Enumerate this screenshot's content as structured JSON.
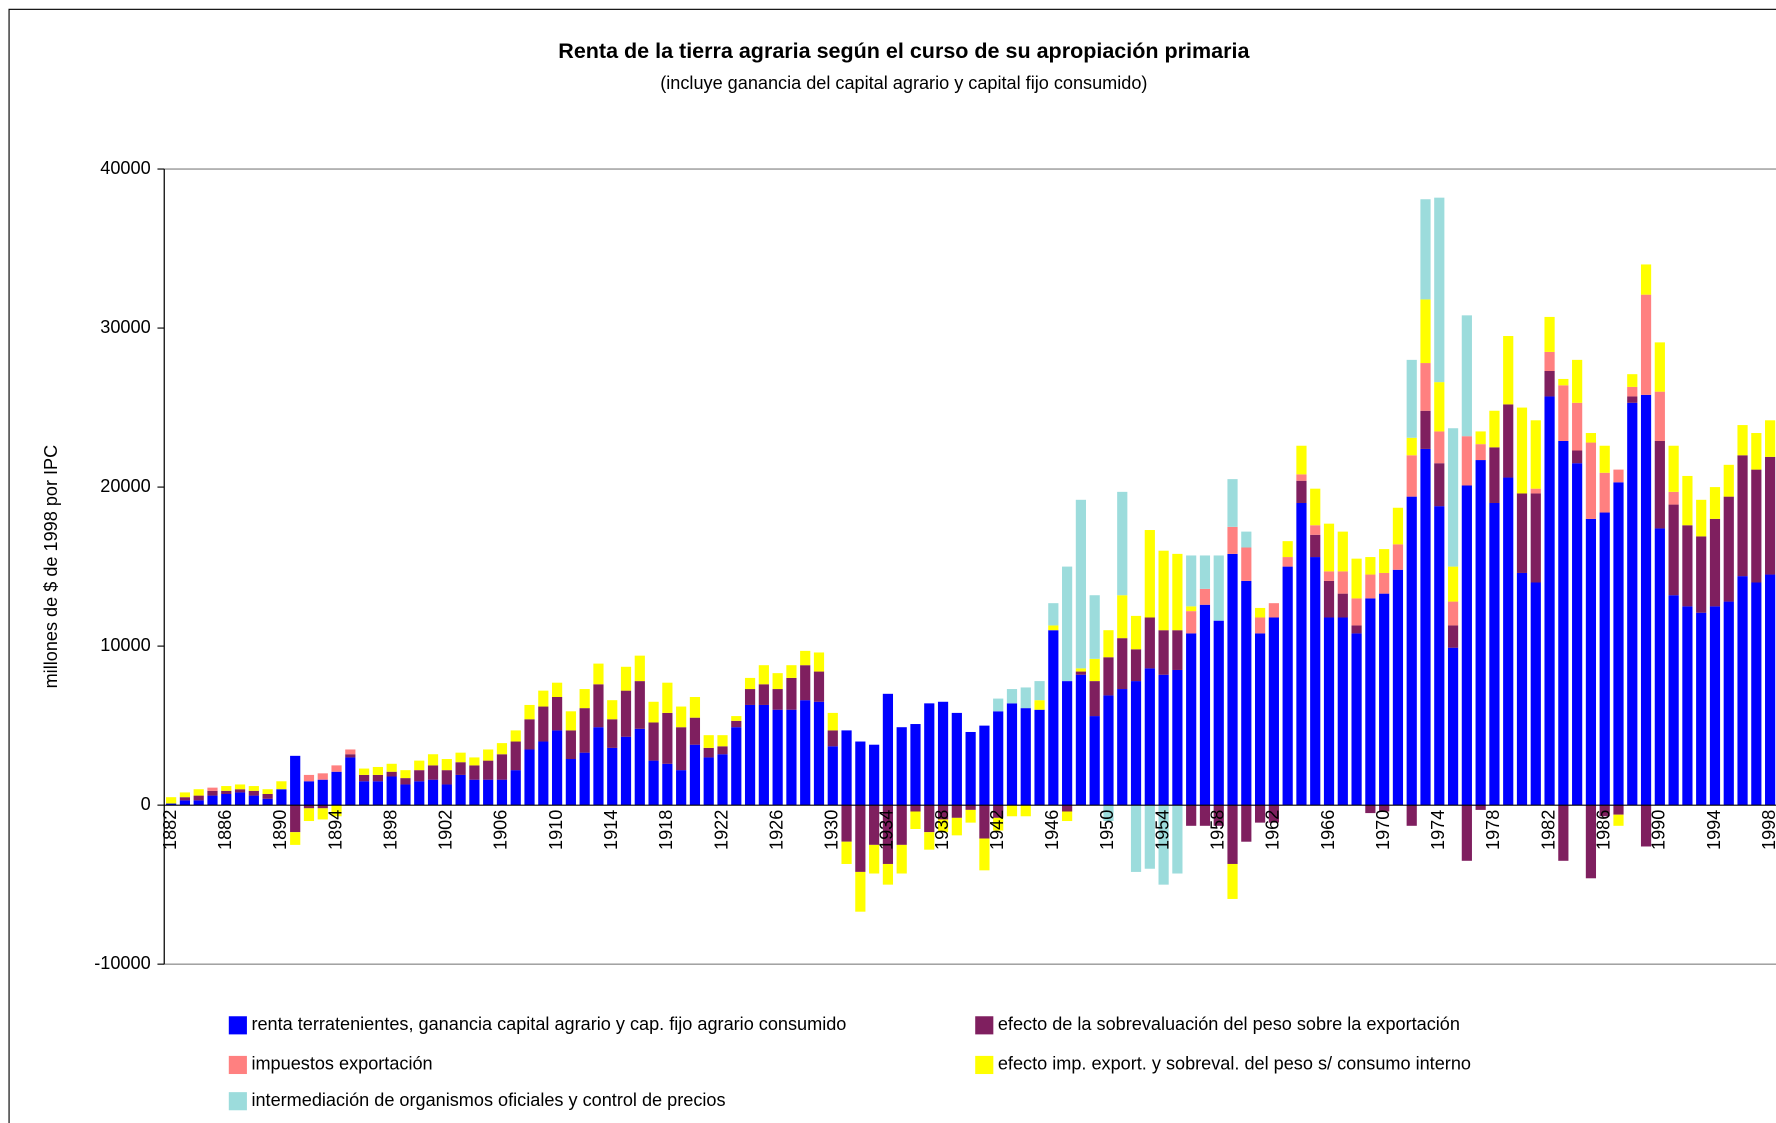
{
  "chart_data": {
    "type": "stacked-bar",
    "title": "Renta de la tierra agraria según el curso de su apropiación primaria",
    "subtitle": "(incluye ganancia del capital agrario y capital fijo consumido)",
    "y_label": "millones de $ de 1998 por IPC",
    "ylim": [
      -10000,
      40000
    ],
    "yticks": [
      -10000,
      0,
      10000,
      20000,
      30000,
      40000
    ],
    "categories": [
      "1882",
      null,
      null,
      null,
      "1886",
      null,
      null,
      null,
      "1890",
      null,
      null,
      null,
      "1894",
      null,
      null,
      null,
      "1898",
      null,
      null,
      null,
      "1902",
      null,
      null,
      null,
      "1906",
      null,
      null,
      null,
      "1910",
      null,
      null,
      null,
      "1914",
      null,
      null,
      null,
      "1918",
      null,
      null,
      null,
      "1922",
      null,
      null,
      null,
      "1926",
      null,
      null,
      null,
      "1930",
      null,
      null,
      null,
      "1934",
      null,
      null,
      null,
      "1938",
      null,
      null,
      null,
      "1942",
      null,
      null,
      null,
      "1946",
      null,
      null,
      null,
      "1950",
      null,
      null,
      null,
      "1954",
      null,
      null,
      null,
      "1958",
      null,
      null,
      null,
      "1962",
      null,
      null,
      null,
      "1966",
      null,
      null,
      null,
      "1970",
      null,
      null,
      null,
      "1974",
      null,
      null,
      null,
      "1978",
      null,
      null,
      null,
      "1982",
      null,
      null,
      null,
      "1986",
      null,
      null,
      null,
      "1990",
      null,
      null,
      null,
      "1994",
      null,
      null,
      null,
      "1998"
    ],
    "series": [
      {
        "name": "renta terratenientes, ganancia capital agrario y cap. fijo agrario consumido",
        "color": "#0000ff",
        "values": [
          100,
          300,
          300,
          600,
          700,
          800,
          600,
          400,
          1000,
          3100,
          1500,
          1600,
          2100,
          3000,
          1500,
          1500,
          1800,
          1300,
          1500,
          1600,
          1300,
          1900,
          1600,
          1600,
          1600,
          2200,
          3500,
          4000,
          4700,
          2900,
          3300,
          4900,
          3600,
          4300,
          4800,
          2800,
          2600,
          2200,
          3800,
          3000,
          3200,
          4900,
          6300,
          6300,
          6000,
          6000,
          6600,
          6500,
          3700,
          4700,
          4000,
          3800,
          7000,
          4900,
          5100,
          6400,
          6500,
          5800,
          4600,
          5000,
          5900,
          6400,
          6100,
          6000,
          11000,
          7800,
          8200,
          5600,
          6900,
          7300,
          7800,
          8600,
          8200,
          8500,
          10800,
          12600,
          11600,
          15800,
          14100,
          10800,
          11800,
          15000,
          19000,
          15600,
          11800,
          11800,
          10800,
          13000,
          13300,
          14800,
          19400,
          22400,
          18800,
          9900,
          20100,
          21700,
          19000,
          20600,
          14600,
          14000,
          25700,
          22900,
          21500,
          18000,
          18400,
          20300,
          25300,
          25800,
          17400,
          13200,
          12500,
          12100,
          12500,
          12800,
          14400,
          14000,
          14500
        ]
      },
      {
        "name": "efecto de la sobrevaluación del peso sobre la exportación",
        "color": "#7f1f5f",
        "values": [
          0,
          200,
          300,
          300,
          200,
          200,
          300,
          300,
          0,
          -1700,
          -200,
          -200,
          0,
          200,
          400,
          400,
          300,
          400,
          700,
          900,
          900,
          800,
          900,
          1200,
          1600,
          1800,
          1900,
          2200,
          2100,
          1800,
          2800,
          2700,
          1800,
          2900,
          3000,
          2400,
          3200,
          2700,
          1700,
          600,
          500,
          400,
          1000,
          1300,
          1300,
          2000,
          2200,
          1900,
          1000,
          -2300,
          -4200,
          -2500,
          -3700,
          -2500,
          -400,
          -1700,
          -900,
          -800,
          -300,
          -2100,
          -800,
          0,
          0,
          0,
          0,
          -400,
          200,
          2200,
          2400,
          3200,
          2000,
          3200,
          2800,
          2500,
          -1300,
          -1300,
          -1300,
          -3700,
          -2300,
          -1100,
          -1100,
          0,
          1400,
          1400,
          2300,
          1500,
          500,
          -500,
          -400,
          0,
          -1300,
          2400,
          2700,
          1400,
          -3500,
          -300,
          3500,
          4600,
          5000,
          5600,
          1600,
          -3500,
          800,
          -4600,
          -700,
          -600,
          400,
          -2600,
          5500,
          5700,
          5100,
          4800,
          5500,
          6600,
          7600,
          7100,
          7400
        ]
      },
      {
        "name": "impuestos exportación",
        "color": "#ff8080",
        "values": [
          0,
          0,
          0,
          200,
          0,
          0,
          0,
          0,
          0,
          0,
          400,
          400,
          400,
          300,
          0,
          0,
          0,
          0,
          0,
          0,
          0,
          0,
          0,
          0,
          0,
          0,
          0,
          0,
          0,
          0,
          0,
          0,
          0,
          0,
          0,
          0,
          0,
          0,
          0,
          0,
          0,
          0,
          0,
          0,
          0,
          0,
          0,
          0,
          0,
          0,
          0,
          0,
          0,
          0,
          0,
          0,
          0,
          0,
          0,
          0,
          0,
          0,
          0,
          0,
          0,
          0,
          0,
          0,
          0,
          0,
          0,
          0,
          0,
          0,
          1400,
          1000,
          0,
          1700,
          2100,
          1000,
          900,
          600,
          400,
          600,
          600,
          1400,
          1700,
          1500,
          1300,
          1600,
          2600,
          3000,
          2000,
          1500,
          3100,
          1000,
          0,
          0,
          0,
          300,
          1200,
          3500,
          3000,
          4800,
          2500,
          800,
          600,
          6300,
          3100,
          800,
          0,
          0,
          0,
          0,
          0,
          0,
          0
        ]
      },
      {
        "name": "efecto imp. export. y sobreval. del peso s/ consumo interno",
        "color": "#ffff00",
        "values": [
          400,
          300,
          400,
          0,
          300,
          300,
          300,
          300,
          500,
          -800,
          -800,
          -700,
          -700,
          0,
          400,
          500,
          500,
          500,
          600,
          700,
          700,
          600,
          500,
          700,
          700,
          700,
          900,
          1000,
          900,
          1200,
          1200,
          1300,
          1200,
          1500,
          1600,
          1300,
          1900,
          1300,
          1300,
          800,
          700,
          300,
          700,
          1200,
          1000,
          800,
          900,
          1200,
          1100,
          -1400,
          -2500,
          -1800,
          -1300,
          -1800,
          -1100,
          -1100,
          -800,
          -1100,
          -800,
          -2000,
          -800,
          -700,
          -700,
          600,
          300,
          -600,
          200,
          1400,
          1700,
          2700,
          2100,
          5500,
          5000,
          4800,
          300,
          0,
          0,
          -2200,
          0,
          600,
          0,
          1000,
          1800,
          2300,
          3000,
          2500,
          2500,
          1100,
          1500,
          2300,
          1100,
          4000,
          3100,
          2200,
          0,
          800,
          2300,
          4300,
          5400,
          4300,
          2200,
          400,
          2700,
          600,
          1700,
          -700,
          800,
          1900,
          3100,
          2900,
          3100,
          2300,
          2000,
          2000,
          1900,
          2300,
          2300
        ]
      },
      {
        "name": "intermediación de organismos oficiales y control de precios",
        "color": "#9cdcdc",
        "values": [
          0,
          0,
          0,
          0,
          0,
          0,
          0,
          0,
          0,
          0,
          0,
          0,
          0,
          0,
          0,
          0,
          0,
          0,
          0,
          0,
          0,
          0,
          0,
          0,
          0,
          0,
          0,
          0,
          0,
          0,
          0,
          0,
          0,
          0,
          0,
          0,
          0,
          0,
          0,
          0,
          0,
          0,
          0,
          0,
          0,
          0,
          0,
          0,
          0,
          0,
          0,
          0,
          0,
          0,
          0,
          0,
          0,
          0,
          0,
          0,
          800,
          900,
          1300,
          1200,
          1400,
          7200,
          10600,
          4000,
          -1000,
          6500,
          -4200,
          -4000,
          -5000,
          -4300,
          3200,
          2100,
          4100,
          3000,
          1000,
          0,
          0,
          0,
          0,
          0,
          0,
          0,
          0,
          0,
          0,
          0,
          4900,
          6300,
          11600,
          8700,
          7600,
          0,
          0,
          0,
          0,
          0,
          0,
          0,
          0,
          0,
          0,
          0,
          0,
          0,
          0,
          0,
          0,
          0,
          0,
          0,
          0,
          0,
          0
        ]
      }
    ]
  }
}
